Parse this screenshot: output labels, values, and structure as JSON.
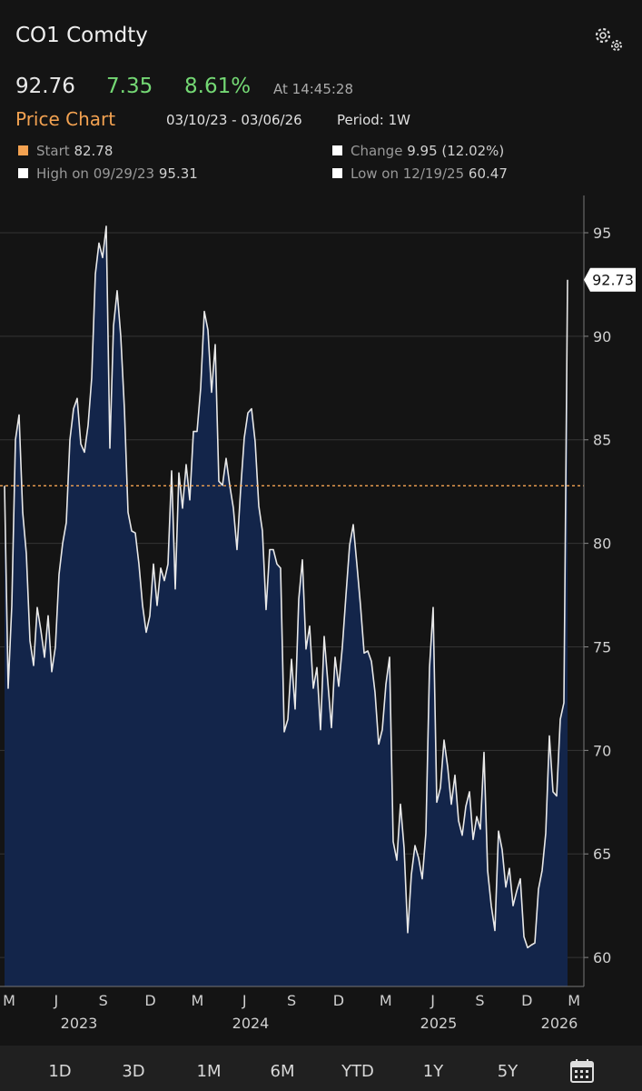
{
  "header": {
    "ticker": "CO1 Comdty",
    "price": "92.76",
    "change": "7.35",
    "change_pct": "8.61%",
    "time": "At 14:45:28",
    "section": "Price Chart",
    "range": "03/10/23 - 03/06/26",
    "period": "Period: 1W"
  },
  "stats": [
    {
      "label": "Start",
      "value": "82.78"
    },
    {
      "label": "Change",
      "value": "9.95 (12.02%)"
    },
    {
      "label": "High on 09/29/23",
      "value": "95.31"
    },
    {
      "label": "Low on 12/19/25",
      "value": "60.47"
    }
  ],
  "chart_data": {
    "type": "area",
    "color": "#e8e8e8",
    "fill": "#13254a",
    "reference_color": "#f3a251",
    "month_labels": [
      "M",
      "J",
      "S",
      "D",
      "M",
      "J",
      "S",
      "D",
      "M",
      "J",
      "S",
      "D",
      "M"
    ],
    "year_labels": [
      "2023",
      "2024",
      "2025",
      "2026"
    ],
    "ylim": [
      58.6,
      96.8
    ],
    "yticks": [
      60,
      65,
      70,
      75,
      80,
      85,
      90,
      95
    ],
    "grid": true,
    "values": [
      82.78,
      73,
      77,
      85,
      86.2,
      81.5,
      79.5,
      75.3,
      74.1,
      76.9,
      75.8,
      74.5,
      76.5,
      73.8,
      75,
      78.5,
      80,
      81,
      85,
      86.5,
      87,
      84.8,
      84.4,
      85.7,
      88,
      93,
      94.5,
      93.8,
      95.31,
      84.6,
      90.5,
      92.2,
      90,
      86.5,
      81.5,
      80.6,
      80.5,
      79,
      77,
      75.7,
      76.5,
      79,
      77,
      78.8,
      78.2,
      79,
      83.5,
      77.8,
      83.4,
      81.7,
      83.8,
      82.1,
      85.4,
      85.4,
      87.5,
      91.2,
      90.3,
      87.3,
      89.6,
      83,
      82.8,
      84.1,
      82.8,
      81.7,
      79.7,
      82.6,
      85.1,
      86.3,
      86.5,
      84.9,
      81.8,
      80.6,
      76.8,
      79.7,
      79.7,
      79,
      78.8,
      70.9,
      71.5,
      74.4,
      72,
      77.3,
      79.2,
      74.9,
      76,
      73,
      74,
      71,
      75.5,
      73.3,
      71.1,
      74.5,
      73.1,
      75,
      77.5,
      79.9,
      80.9,
      79,
      77,
      74.7,
      74.8,
      74.3,
      72.8,
      70.3,
      71,
      73.2,
      74.5,
      65.6,
      64.7,
      67.4,
      65.3,
      61.2,
      64,
      65.4,
      64.8,
      63.8,
      66,
      74,
      76.9,
      67.5,
      68.2,
      70.5,
      69.2,
      67.4,
      68.8,
      66.6,
      65.9,
      67.3,
      68,
      65.7,
      66.8,
      66.2,
      69.9,
      64.2,
      62.5,
      61.3,
      66.1,
      65.2,
      63.4,
      64.3,
      62.5,
      63.2,
      63.8,
      61,
      60.47,
      60.6,
      60.7,
      63.3,
      64.2,
      66,
      70.7,
      68,
      67.8,
      71.5,
      72.3,
      92.73
    ]
  },
  "range_buttons": [
    "1D",
    "3D",
    "1M",
    "6M",
    "YTD",
    "1Y",
    "5Y"
  ]
}
